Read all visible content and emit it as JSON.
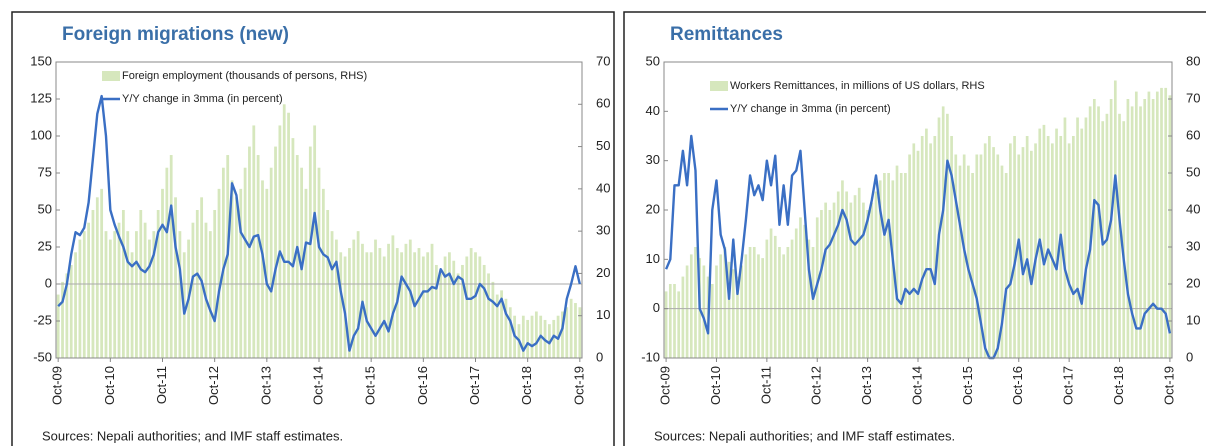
{
  "chart_data": [
    {
      "type": "combo",
      "title": "Foreign migrations (new)",
      "source": "Sources: Nepali authorities; and IMF staff estimates.",
      "categories": [
        "Oct-09",
        null,
        null,
        null,
        null,
        null,
        null,
        null,
        null,
        null,
        null,
        null,
        "Oct-10",
        null,
        null,
        null,
        null,
        null,
        null,
        null,
        null,
        null,
        null,
        null,
        "Oct-11",
        null,
        null,
        null,
        null,
        null,
        null,
        null,
        null,
        null,
        null,
        null,
        "Oct-12",
        null,
        null,
        null,
        null,
        null,
        null,
        null,
        null,
        null,
        null,
        null,
        "Oct-13",
        null,
        null,
        null,
        null,
        null,
        null,
        null,
        null,
        null,
        null,
        null,
        "Oct-14",
        null,
        null,
        null,
        null,
        null,
        null,
        null,
        null,
        null,
        null,
        null,
        "Oct-15",
        null,
        null,
        null,
        null,
        null,
        null,
        null,
        null,
        null,
        null,
        null,
        "Oct-16",
        null,
        null,
        null,
        null,
        null,
        null,
        null,
        null,
        null,
        null,
        null,
        "Oct-17",
        null,
        null,
        null,
        null,
        null,
        null,
        null,
        null,
        null,
        null,
        null,
        "Oct-18",
        null,
        null,
        null,
        null,
        null,
        null,
        null,
        null,
        null,
        null,
        null,
        "Oct-19"
      ],
      "ylim": [
        -50,
        150
      ],
      "yticks": [
        -50,
        -25,
        0,
        25,
        50,
        75,
        100,
        125,
        150
      ],
      "y2lim": [
        0,
        70
      ],
      "y2ticks": [
        0,
        10,
        20,
        30,
        40,
        50,
        60,
        70
      ],
      "series": [
        {
          "name": "Foreign employment (thousands of persons, RHS)",
          "type": "bar",
          "axis": "y2",
          "color": "#d6e7bd",
          "values": [
            15,
            18,
            20,
            22,
            25,
            28,
            30,
            32,
            35,
            38,
            40,
            30,
            28,
            30,
            32,
            35,
            30,
            25,
            30,
            35,
            32,
            28,
            30,
            35,
            40,
            45,
            48,
            38,
            30,
            25,
            28,
            32,
            35,
            38,
            32,
            30,
            35,
            40,
            45,
            48,
            42,
            38,
            40,
            45,
            50,
            55,
            48,
            42,
            40,
            45,
            50,
            55,
            60,
            58,
            52,
            48,
            45,
            40,
            50,
            55,
            45,
            40,
            35,
            30,
            28,
            25,
            24,
            26,
            28,
            30,
            27,
            25,
            25,
            28,
            26,
            24,
            27,
            29,
            26,
            25,
            27,
            28,
            25,
            26,
            24,
            25,
            27,
            22,
            20,
            24,
            25,
            23,
            20,
            22,
            24,
            26,
            25,
            24,
            22,
            20,
            18,
            15,
            16,
            14,
            12,
            10,
            8,
            10,
            9,
            10,
            11,
            10,
            9,
            8,
            9,
            10,
            11,
            12,
            14,
            13,
            12
          ]
        },
        {
          "name": "Y/Y change in 3mma (in percent)",
          "type": "line",
          "color": "#3a6fc4",
          "values": [
            -15,
            -12,
            0,
            20,
            35,
            33,
            38,
            55,
            85,
            115,
            127,
            100,
            50,
            40,
            32,
            25,
            15,
            12,
            15,
            10,
            8,
            12,
            20,
            35,
            40,
            35,
            53,
            25,
            10,
            -20,
            -10,
            5,
            7,
            2,
            -10,
            -18,
            -25,
            -5,
            10,
            20,
            68,
            60,
            35,
            30,
            25,
            32,
            33,
            20,
            0,
            -5,
            10,
            22,
            15,
            15,
            12,
            25,
            10,
            28,
            27,
            48,
            25,
            20,
            18,
            10,
            15,
            -5,
            -20,
            -45,
            -35,
            -30,
            -12,
            -25,
            -30,
            -35,
            -30,
            -25,
            -32,
            -20,
            -12,
            5,
            0,
            -5,
            -15,
            -10,
            -5,
            -5,
            -2,
            -3,
            10,
            5,
            7,
            0,
            5,
            3,
            -10,
            -10,
            -8,
            0,
            -3,
            -10,
            -12,
            -15,
            -10,
            -20,
            -25,
            -35,
            -38,
            -45,
            -40,
            -42,
            -40,
            -35,
            -38,
            -40,
            -35,
            -37,
            -30,
            -10,
            0,
            12,
            0
          ]
        }
      ]
    },
    {
      "type": "combo",
      "title": "Remittances",
      "source": "Sources: Nepali authorities; and IMF staff estimates.",
      "categories": [
        "Oct-09",
        null,
        null,
        null,
        null,
        null,
        null,
        null,
        null,
        null,
        null,
        null,
        "Oct-10",
        null,
        null,
        null,
        null,
        null,
        null,
        null,
        null,
        null,
        null,
        null,
        "Oct-11",
        null,
        null,
        null,
        null,
        null,
        null,
        null,
        null,
        null,
        null,
        null,
        "Oct-12",
        null,
        null,
        null,
        null,
        null,
        null,
        null,
        null,
        null,
        null,
        null,
        "Oct-13",
        null,
        null,
        null,
        null,
        null,
        null,
        null,
        null,
        null,
        null,
        null,
        "Oct-14",
        null,
        null,
        null,
        null,
        null,
        null,
        null,
        null,
        null,
        null,
        null,
        "Oct-15",
        null,
        null,
        null,
        null,
        null,
        null,
        null,
        null,
        null,
        null,
        null,
        "Oct-16",
        null,
        null,
        null,
        null,
        null,
        null,
        null,
        null,
        null,
        null,
        null,
        "Oct-17",
        null,
        null,
        null,
        null,
        null,
        null,
        null,
        null,
        null,
        null,
        null,
        "Oct-18",
        null,
        null,
        null,
        null,
        null,
        null,
        null,
        null,
        null,
        null,
        null,
        "Oct-19"
      ],
      "ylim": [
        -10,
        50
      ],
      "yticks": [
        -10,
        0,
        10,
        20,
        30,
        40,
        50
      ],
      "y2lim": [
        0,
        80
      ],
      "y2ticks": [
        0,
        10,
        20,
        30,
        40,
        50,
        60,
        70,
        80
      ],
      "series": [
        {
          "name": "Workers Remittances, in millions of US dollars, RHS",
          "type": "bar",
          "axis": "y2",
          "color": "#d6e7bd",
          "values": [
            18,
            20,
            20,
            18,
            22,
            25,
            28,
            30,
            27,
            25,
            22,
            20,
            25,
            28,
            30,
            26,
            24,
            22,
            25,
            28,
            30,
            30,
            28,
            27,
            32,
            35,
            33,
            30,
            28,
            30,
            32,
            35,
            38,
            36,
            32,
            30,
            38,
            40,
            42,
            40,
            42,
            45,
            48,
            45,
            42,
            44,
            46,
            42,
            40,
            42,
            45,
            48,
            50,
            50,
            48,
            52,
            50,
            50,
            55,
            58,
            56,
            60,
            62,
            58,
            60,
            65,
            68,
            66,
            60,
            55,
            52,
            55,
            52,
            50,
            55,
            55,
            58,
            60,
            57,
            55,
            52,
            50,
            58,
            60,
            55,
            57,
            60,
            56,
            58,
            62,
            63,
            60,
            58,
            62,
            60,
            65,
            58,
            60,
            65,
            62,
            65,
            68,
            70,
            68,
            64,
            66,
            70,
            75,
            66,
            64,
            70,
            68,
            72,
            68,
            70,
            72,
            70,
            72,
            73,
            73,
            71
          ]
        },
        {
          "name": "Y/Y change in 3mma (in percent)",
          "type": "line",
          "color": "#3a6fc4",
          "values": [
            8,
            10,
            25,
            25,
            32,
            25,
            35,
            28,
            0,
            -2,
            -5,
            20,
            26,
            15,
            12,
            2,
            14,
            3,
            10,
            18,
            27,
            23,
            25,
            22,
            30,
            25,
            31,
            17,
            25,
            17,
            27,
            28,
            32,
            20,
            8,
            2,
            5,
            8,
            12,
            13,
            15,
            17,
            20,
            18,
            14,
            13,
            14,
            15,
            18,
            22,
            27,
            20,
            15,
            18,
            10,
            2,
            1,
            4,
            3,
            4,
            3,
            6,
            8,
            8,
            5,
            15,
            20,
            30,
            27,
            22,
            17,
            12,
            8,
            5,
            2,
            -3,
            -8,
            -10,
            -10,
            -8,
            -3,
            4,
            5,
            9,
            14,
            7,
            10,
            5,
            10,
            14,
            9,
            12,
            10,
            8,
            15,
            8,
            5,
            3,
            4,
            1,
            8,
            12,
            22,
            21,
            13,
            14,
            18,
            27,
            18,
            10,
            3,
            -1,
            -4,
            -4,
            -1,
            0,
            1,
            0,
            0,
            -1,
            -5
          ]
        }
      ]
    }
  ]
}
